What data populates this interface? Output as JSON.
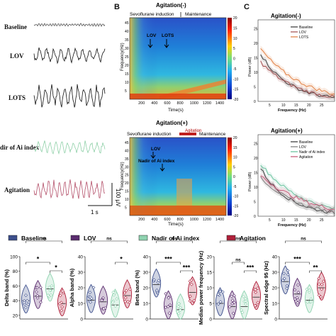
{
  "panel_a": {
    "traces": [
      {
        "label": "Baseline",
        "color": "#555555"
      },
      {
        "label": "LOV",
        "color": "#111111"
      },
      {
        "label": "LOTS",
        "color": "#111111"
      },
      {
        "label": "dir of Ai index",
        "color": "#8fd0a8"
      },
      {
        "label": "Agitation",
        "color": "#b4506a"
      }
    ],
    "scale_v": "100 µV",
    "scale_t": "1 s"
  },
  "panel_b": {
    "letter": "B",
    "top": {
      "title": "Agitation(-)",
      "phase_1": "Sevoflurane induction",
      "phase_2": "Maintenance",
      "ann_1": "LOV",
      "ann_2": "LOTS",
      "ylabel": "Frequency(Hz)",
      "xlabel": "Time(s)",
      "xticks": [
        "200",
        "400",
        "600",
        "800",
        "1000",
        "1200",
        "1400"
      ],
      "yticks": [
        "5",
        "10",
        "15",
        "20",
        "25",
        "30",
        "35",
        "40",
        "45"
      ],
      "cticks": [
        "20",
        "15",
        "10",
        "5",
        "0",
        "-5",
        "-10",
        "-15",
        "-20"
      ]
    },
    "bottom": {
      "title": "Agitation(+)",
      "phase_1": "Sevoflurane induction",
      "phase_mid": "Agitation",
      "phase_2": "Maintenance",
      "ann_1": "LOV",
      "ann_2": "Nadir of Ai index",
      "ylabel": "Frequency(Hz)",
      "xlabel": "Time(s)",
      "xticks": [
        "200",
        "400",
        "600",
        "800",
        "1000",
        "1200",
        "1400"
      ],
      "yticks": [
        "5",
        "10",
        "15",
        "20",
        "25",
        "30",
        "35",
        "40",
        "45"
      ],
      "cticks": [
        "20",
        "15",
        "10",
        "5",
        "0",
        "-5",
        "-10",
        "-15",
        "-20"
      ]
    }
  },
  "panel_c": {
    "letter": "C",
    "top": {
      "title": "Agitation(-)",
      "ylabel": "Power (dB)",
      "xlabel": "Frequency (Hz)",
      "yticks": [
        "0",
        "5",
        "10",
        "15",
        "20",
        "25"
      ],
      "xticks": [
        "5",
        "10",
        "15",
        "20",
        "25"
      ],
      "legend": [
        "Baseline",
        "LOV",
        "LOTS"
      ],
      "colors": [
        "#333333",
        "#a04848",
        "#e07838"
      ]
    },
    "bottom": {
      "title": "Agitation(+)",
      "ylabel": "Power (dB)",
      "xlabel": "Frequency (Hz)",
      "yticks": [
        "0",
        "5",
        "10",
        "15",
        "20",
        "25"
      ],
      "xticks": [
        "5",
        "10",
        "15",
        "20",
        "25"
      ],
      "legend": [
        "Baseline",
        "LOV",
        "Nadir of Ai index",
        "Agitation"
      ],
      "colors": [
        "#333333",
        "#777777",
        "#5fbf98",
        "#c05070"
      ]
    }
  },
  "legend": {
    "items": [
      {
        "label": "Baseline",
        "color": "#3d4f8c"
      },
      {
        "label": "LOV",
        "color": "#5a2c6e"
      },
      {
        "label": "Nadir of Ai index",
        "color": "#8fd3b0"
      },
      {
        "label": "Agitation",
        "color": "#b0203a"
      }
    ]
  },
  "chart_data": [
    {
      "type": "violin",
      "ylabel": "Delta band (%)",
      "yticks": [
        "20",
        "40",
        "60",
        "80",
        "100"
      ],
      "ylim": [
        15,
        100
      ],
      "categories": [
        "Baseline",
        "LOV",
        "Nadir of Ai index",
        "Agitation"
      ],
      "medians": [
        40,
        46,
        56,
        36
      ],
      "sig": [
        {
          "from": 0,
          "to": 3,
          "text": "ns"
        },
        {
          "from": 0,
          "to": 2,
          "text": "*"
        },
        {
          "from": 2,
          "to": 3,
          "text": "*"
        }
      ]
    },
    {
      "type": "violin",
      "ylabel": "Alpha band (%)",
      "yticks": [
        "0",
        "10",
        "20",
        "30",
        "40"
      ],
      "ylim": [
        0,
        40
      ],
      "categories": [
        "Baseline",
        "LOV",
        "Nadir of Ai index",
        "Agitation"
      ],
      "medians": [
        12,
        11,
        9,
        15
      ],
      "sig": [
        {
          "from": 0,
          "to": 3,
          "text": "ns"
        },
        {
          "from": 2,
          "to": 3,
          "text": "*"
        }
      ]
    },
    {
      "type": "violin",
      "ylabel": "Beta band (%)",
      "yticks": [
        "0",
        "10",
        "20",
        "30",
        "40"
      ],
      "ylim": [
        0,
        40
      ],
      "categories": [
        "Baseline",
        "LOV",
        "Nadir of Ai index",
        "Agitation"
      ],
      "medians": [
        22,
        8,
        6,
        17
      ],
      "sig": [
        {
          "from": 0,
          "to": 3,
          "text": "ns"
        },
        {
          "from": 0,
          "to": 2,
          "text": "***"
        },
        {
          "from": 2,
          "to": 3,
          "text": "***"
        }
      ]
    },
    {
      "type": "violin",
      "ylabel": "Median power frequency (Hz)",
      "yticks": [
        "0",
        "5",
        "10",
        "15",
        "20"
      ],
      "ylim": [
        0,
        20
      ],
      "categories": [
        "Baseline",
        "LOV",
        "Nadir of Ai index",
        "Agitation"
      ],
      "medians": [
        5,
        4,
        4,
        7
      ],
      "sig": [
        {
          "from": 0,
          "to": 3,
          "text": "ns"
        },
        {
          "from": 1,
          "to": 2,
          "text": "ns"
        },
        {
          "from": 2,
          "to": 3,
          "text": "***"
        }
      ]
    },
    {
      "type": "violin",
      "ylabel": "Spectral edge 95 (Hz)",
      "yticks": [
        "0",
        "10",
        "20",
        "30",
        "40"
      ],
      "ylim": [
        0,
        40
      ],
      "categories": [
        "Baseline",
        "LOV",
        "Nadir of Ai index",
        "Agitation"
      ],
      "medians": [
        24,
        16,
        12,
        20
      ],
      "sig": [
        {
          "from": 0,
          "to": 3,
          "text": "ns"
        },
        {
          "from": 0,
          "to": 2,
          "text": "***"
        },
        {
          "from": 2,
          "to": 3,
          "text": "**"
        }
      ]
    }
  ]
}
